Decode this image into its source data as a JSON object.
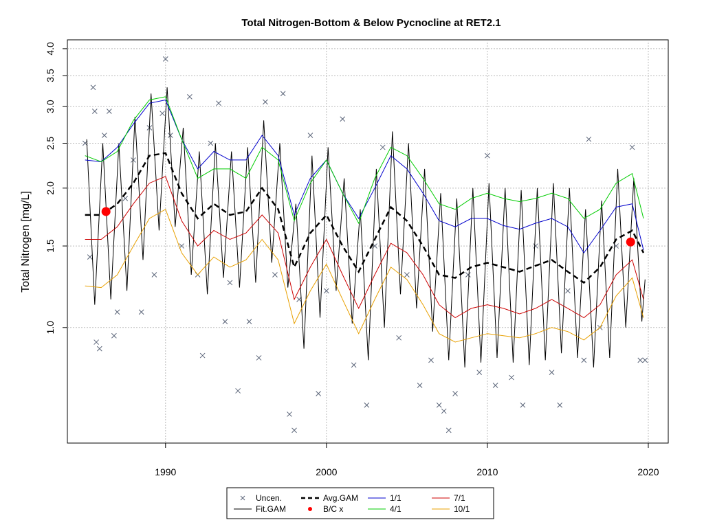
{
  "chart_data": {
    "type": "line",
    "title": "Total Nitrogen-Bottom & Below Pycnocline at RET2.1",
    "y_label": "Total Nitrogen [mg/L]",
    "log_y": true,
    "grid": true,
    "legend": "bottom",
    "xlim": [
      1983.9,
      2021.24
    ],
    "xticks": [
      1990,
      2000,
      2010,
      2020
    ],
    "ylim": [
      0.563,
      4.18
    ],
    "yticks": [
      {
        "value": 1,
        "label": "1.0"
      },
      1.5,
      {
        "value": 2,
        "label": "2.0"
      },
      2.5,
      {
        "value": 3,
        "label": "3.0"
      },
      3.5,
      {
        "value": 4,
        "label": "4.0"
      }
    ],
    "series": [
      {
        "name": "Uncen.",
        "color": "#5a6478",
        "marker": "x",
        "x": [
          1985.0,
          1985.3,
          1985.5,
          1985.6,
          1985.7,
          1985.9,
          1986.2,
          1986.5,
          1986.8,
          1987.0,
          1987.5,
          1988.0,
          1988.5,
          1989.0,
          1989.3,
          1989.8,
          1990.0,
          1990.3,
          1991.0,
          1991.5,
          1992.0,
          1992.3,
          1992.8,
          1993.3,
          1993.7,
          1994.0,
          1994.5,
          1995.2,
          1995.8,
          1996.2,
          1996.8,
          1997.3,
          1997.7,
          1998.0,
          1998.3,
          1999.0,
          1999.5,
          2000.0,
          2001.0,
          2001.7,
          2002.5,
          2003.0,
          2003.5,
          2004.5,
          2005.0,
          2005.8,
          2006.5,
          2007.0,
          2007.3,
          2007.6,
          2008.0,
          2008.8,
          2009.5,
          2010.0,
          2010.5,
          2011.5,
          2012.2,
          2013.0,
          2014.0,
          2014.5,
          2015.0,
          2016.0,
          2016.3,
          2017.0,
          2018.0,
          2019.0,
          2019.5,
          2019.8
        ],
        "values": [
          2.5,
          1.42,
          3.3,
          2.93,
          0.93,
          0.9,
          2.6,
          2.93,
          0.96,
          1.08,
          1.9,
          2.3,
          1.08,
          2.7,
          1.3,
          2.9,
          3.8,
          2.6,
          1.5,
          3.15,
          1.3,
          0.87,
          2.5,
          3.05,
          1.03,
          1.25,
          0.73,
          1.03,
          0.86,
          3.07,
          1.3,
          3.2,
          0.65,
          0.6,
          1.15,
          2.6,
          0.72,
          1.2,
          2.82,
          0.83,
          0.68,
          1.5,
          2.45,
          0.95,
          1.3,
          0.75,
          0.85,
          0.68,
          0.66,
          0.6,
          0.72,
          1.3,
          0.8,
          2.35,
          0.75,
          0.78,
          0.68,
          1.5,
          0.8,
          0.68,
          1.2,
          0.85,
          2.55,
          1.0,
          1.5,
          2.45,
          0.85,
          0.85
        ]
      },
      {
        "name": "Fit.GAM",
        "color": "#000000",
        "x": [
          1985.1,
          1985.6,
          1986.1,
          1986.6,
          1987.1,
          1987.6,
          1988.1,
          1988.6,
          1989.1,
          1989.6,
          1990.1,
          1990.6,
          1991.1,
          1991.6,
          1992.1,
          1992.6,
          1993.1,
          1993.6,
          1994.1,
          1994.6,
          1995.1,
          1995.6,
          1996.1,
          1996.6,
          1997.1,
          1997.6,
          1998.1,
          1998.6,
          1999.1,
          1999.6,
          2000.1,
          2000.6,
          2001.1,
          2001.6,
          2002.1,
          2002.6,
          2003.1,
          2003.6,
          2004.1,
          2004.6,
          2005.1,
          2005.6,
          2006.1,
          2006.6,
          2007.1,
          2007.6,
          2008.1,
          2008.6,
          2009.1,
          2009.6,
          2010.1,
          2010.6,
          2011.1,
          2011.6,
          2012.1,
          2012.6,
          2013.1,
          2013.6,
          2014.1,
          2014.6,
          2015.1,
          2015.6,
          2016.1,
          2016.6,
          2017.1,
          2017.6,
          2018.1,
          2018.6,
          2019.1,
          2019.6,
          2019.8
        ],
        "values": [
          2.55,
          1.12,
          2.5,
          1.15,
          2.5,
          1.2,
          2.85,
          1.4,
          3.2,
          1.62,
          3.3,
          1.65,
          2.7,
          1.3,
          2.4,
          1.18,
          2.5,
          1.28,
          2.4,
          1.22,
          2.45,
          1.25,
          2.8,
          1.38,
          2.5,
          1.22,
          1.85,
          0.9,
          2.35,
          1.05,
          2.45,
          1.2,
          2.1,
          1.02,
          1.8,
          0.85,
          2.2,
          1.0,
          2.65,
          1.18,
          2.5,
          1.1,
          2.2,
          0.98,
          1.95,
          0.85,
          1.9,
          0.82,
          2.0,
          0.84,
          2.05,
          0.86,
          2.0,
          0.84,
          1.98,
          0.83,
          2.0,
          0.85,
          2.05,
          0.88,
          2.0,
          0.86,
          1.8,
          0.82,
          1.88,
          0.86,
          2.2,
          1.0,
          2.1,
          1.03,
          1.27
        ]
      },
      {
        "name": "Avg.GAM",
        "color": "#000000",
        "dashed": true,
        "x": [
          1985,
          1986,
          1987,
          1988,
          1989,
          1990,
          1991,
          1992,
          1993,
          1994,
          1995,
          1996,
          1997,
          1998,
          1999,
          2000,
          2001,
          2002,
          2003,
          2004,
          2005,
          2006,
          2007,
          2008,
          2009,
          2010,
          2011,
          2012,
          2013,
          2014,
          2015,
          2016,
          2017,
          2018,
          2019,
          2019.7
        ],
        "values": [
          1.75,
          1.75,
          1.85,
          2.05,
          2.35,
          2.38,
          1.95,
          1.72,
          1.85,
          1.75,
          1.78,
          2.0,
          1.8,
          1.35,
          1.6,
          1.75,
          1.5,
          1.32,
          1.55,
          1.82,
          1.7,
          1.5,
          1.3,
          1.28,
          1.35,
          1.38,
          1.35,
          1.32,
          1.36,
          1.4,
          1.32,
          1.25,
          1.35,
          1.55,
          1.62,
          1.45
        ]
      },
      {
        "name": "B/C x",
        "color": "#ff0000",
        "marker": "dot",
        "x": [
          1986.3,
          2018.9
        ],
        "values": [
          1.78,
          1.53
        ]
      },
      {
        "name": "1/1",
        "color": "#0000cc",
        "x": [
          1985,
          1986,
          1987,
          1988,
          1989,
          1990,
          1991,
          1992,
          1993,
          1994,
          1995,
          1996,
          1997,
          1998,
          1999,
          2000,
          2001,
          2002,
          2003,
          2004,
          2005,
          2006,
          2007,
          2008,
          2009,
          2010,
          2011,
          2012,
          2013,
          2014,
          2015,
          2016,
          2017,
          2018,
          2019,
          2019.7
        ],
        "values": [
          2.3,
          2.28,
          2.45,
          2.75,
          3.05,
          3.1,
          2.55,
          2.2,
          2.4,
          2.3,
          2.3,
          2.6,
          2.35,
          1.75,
          2.1,
          2.3,
          1.95,
          1.72,
          2.0,
          2.35,
          2.2,
          1.95,
          1.7,
          1.65,
          1.72,
          1.72,
          1.66,
          1.63,
          1.68,
          1.72,
          1.65,
          1.45,
          1.62,
          1.82,
          1.85,
          1.47
        ]
      },
      {
        "name": "4/1",
        "color": "#00cc00",
        "x": [
          1985,
          1986,
          1987,
          1988,
          1989,
          1990,
          1991,
          1992,
          1993,
          1994,
          1995,
          1996,
          1997,
          1998,
          1999,
          2000,
          2001,
          2002,
          2003,
          2004,
          2005,
          2006,
          2007,
          2008,
          2009,
          2010,
          2011,
          2012,
          2013,
          2014,
          2015,
          2016,
          2017,
          2018,
          2019,
          2019.7
        ],
        "values": [
          2.35,
          2.28,
          2.4,
          2.8,
          3.1,
          3.15,
          2.55,
          2.1,
          2.2,
          2.2,
          2.1,
          2.45,
          2.3,
          1.7,
          2.05,
          2.3,
          1.95,
          1.68,
          2.1,
          2.45,
          2.35,
          2.1,
          1.85,
          1.8,
          1.9,
          1.95,
          1.9,
          1.87,
          1.9,
          1.95,
          1.9,
          1.72,
          1.8,
          2.05,
          2.15,
          1.72
        ]
      },
      {
        "name": "7/1",
        "color": "#cc0000",
        "x": [
          1985,
          1986,
          1987,
          1988,
          1989,
          1990,
          1991,
          1992,
          1993,
          1994,
          1995,
          1996,
          1997,
          1998,
          1999,
          2000,
          2001,
          2002,
          2003,
          2004,
          2005,
          2006,
          2007,
          2008,
          2009,
          2010,
          2011,
          2012,
          2013,
          2014,
          2015,
          2016,
          2017,
          2018,
          2019,
          2019.7
        ],
        "values": [
          1.55,
          1.55,
          1.65,
          1.85,
          2.05,
          2.12,
          1.7,
          1.5,
          1.62,
          1.55,
          1.6,
          1.75,
          1.6,
          1.15,
          1.35,
          1.55,
          1.3,
          1.1,
          1.3,
          1.52,
          1.45,
          1.3,
          1.12,
          1.05,
          1.1,
          1.12,
          1.1,
          1.07,
          1.1,
          1.15,
          1.1,
          1.05,
          1.12,
          1.3,
          1.4,
          1.15
        ]
      },
      {
        "name": "10/1",
        "color": "#e8a000",
        "x": [
          1985,
          1986,
          1987,
          1988,
          1989,
          1990,
          1991,
          1992,
          1993,
          1994,
          1995,
          1996,
          1997,
          1998,
          1999,
          2000,
          2001,
          2002,
          2003,
          2004,
          2005,
          2006,
          2007,
          2008,
          2009,
          2010,
          2011,
          2012,
          2013,
          2014,
          2015,
          2016,
          2017,
          2018,
          2019,
          2019.7
        ],
        "values": [
          1.23,
          1.22,
          1.3,
          1.5,
          1.72,
          1.8,
          1.45,
          1.3,
          1.42,
          1.35,
          1.4,
          1.55,
          1.4,
          1.02,
          1.2,
          1.37,
          1.15,
          0.97,
          1.15,
          1.35,
          1.27,
          1.12,
          0.97,
          0.93,
          0.95,
          0.97,
          0.96,
          0.95,
          0.97,
          1.0,
          0.98,
          0.94,
          1.0,
          1.17,
          1.28,
          1.05
        ]
      }
    ]
  }
}
